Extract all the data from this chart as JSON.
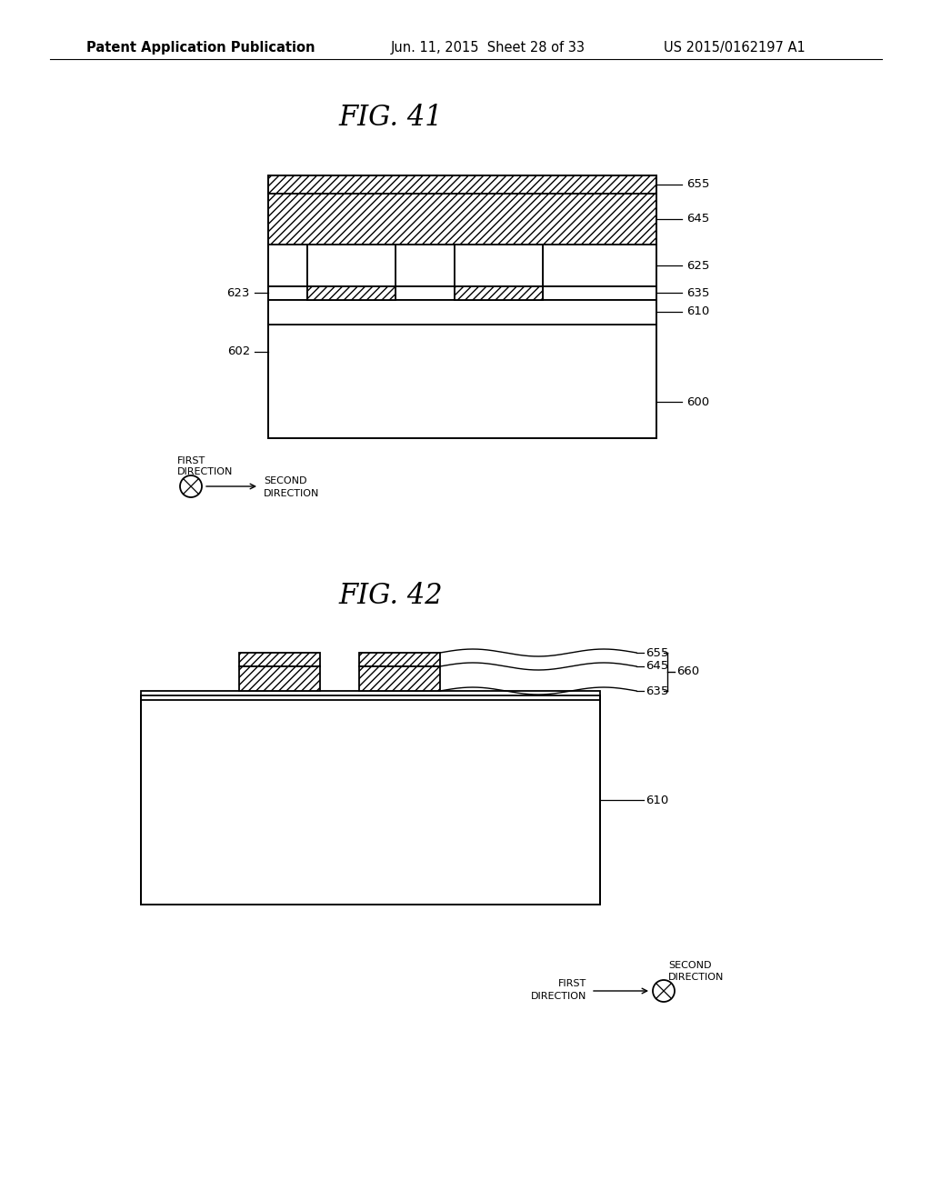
{
  "bg_color": "#ffffff",
  "header_left": "Patent Application Publication",
  "header_mid": "Jun. 11, 2015  Sheet 28 of 33",
  "header_right": "US 2015/0162197 A1",
  "fig41_title": "FIG. 41",
  "fig42_title": "FIG. 42",
  "line_color": "#000000",
  "line_width": 1.3,
  "label_fontsize": 9.5,
  "title_fontsize": 22,
  "header_fontsize": 10.5
}
